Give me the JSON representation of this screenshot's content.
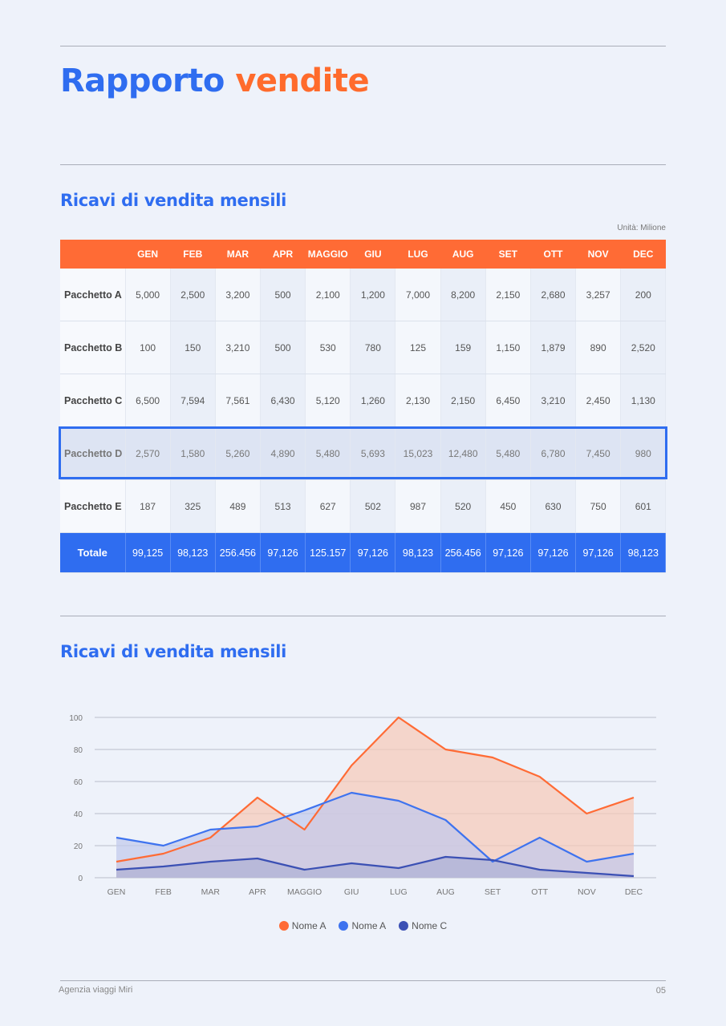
{
  "report": {
    "title_part1": "Rapporto",
    "title_part2": "vendite",
    "table_section_title": "Ricavi di vendita mensili",
    "chart_section_title": "Ricavi di vendita mensili",
    "unit_label": "Unità: Milione"
  },
  "colors": {
    "blue": "#2f6df0",
    "orange": "#ff6b35",
    "navy": "#3b50b4"
  },
  "table": {
    "months": [
      "GEN",
      "FEB",
      "MAR",
      "APR",
      "MAGGIO",
      "GIU",
      "LUG",
      "AUG",
      "SET",
      "OTT",
      "NOV",
      "DEC"
    ],
    "rows": [
      {
        "label": "Pacchetto A",
        "values": [
          "5,000",
          "2,500",
          "3,200",
          "500",
          "2,100",
          "1,200",
          "7,000",
          "8,200",
          "2,150",
          "2,680",
          "3,257",
          "200"
        ]
      },
      {
        "label": "Pacchetto B",
        "values": [
          "100",
          "150",
          "3,210",
          "500",
          "530",
          "780",
          "125",
          "159",
          "1,150",
          "1,879",
          "890",
          "2,520"
        ]
      },
      {
        "label": "Pacchetto C",
        "values": [
          "6,500",
          "7,594",
          "7,561",
          "6,430",
          "5,120",
          "1,260",
          "2,130",
          "2,150",
          "6,450",
          "3,210",
          "2,450",
          "1,130"
        ]
      },
      {
        "label": "Pacchetto D",
        "values": [
          "2,570",
          "1,580",
          "5,260",
          "4,890",
          "5,480",
          "5,693",
          "15,023",
          "12,480",
          "5,480",
          "6,780",
          "7,450",
          "980"
        ],
        "highlighted": true
      },
      {
        "label": "Pacchetto E",
        "values": [
          "187",
          "325",
          "489",
          "513",
          "627",
          "502",
          "987",
          "520",
          "450",
          "630",
          "750",
          "601"
        ]
      }
    ],
    "total": {
      "label": "Totale",
      "values": [
        "99,125",
        "98,123",
        "256.456",
        "97,126",
        "125.157",
        "97,126",
        "98,123",
        "256.456",
        "97,126",
        "97,126",
        "97,126",
        "98,123"
      ]
    }
  },
  "chart_data": {
    "type": "area",
    "categories": [
      "GEN",
      "FEB",
      "MAR",
      "APR",
      "MAGGIO",
      "GIU",
      "LUG",
      "AUG",
      "SET",
      "OTT",
      "NOV",
      "DEC"
    ],
    "ylim": [
      0,
      100
    ],
    "yticks": [
      "0",
      "20",
      "40",
      "60",
      "80",
      "100"
    ],
    "grid": true,
    "legend": "bottom-center",
    "series": [
      {
        "name": "Nome A",
        "color": "#ff6b35",
        "fill": "#f7c9b9",
        "values": [
          10,
          15,
          25,
          50,
          30,
          70,
          100,
          80,
          75,
          63,
          40,
          50
        ]
      },
      {
        "name": "Nome A",
        "color": "#3e73ef",
        "fill": "#c2c9ec",
        "values": [
          25,
          20,
          30,
          32,
          42,
          53,
          48,
          36,
          10,
          25,
          10,
          15
        ]
      },
      {
        "name": "Nome C",
        "color": "#3b50b4",
        "fill": "#aeb1d6",
        "values": [
          5,
          7,
          10,
          12,
          5,
          9,
          6,
          13,
          11,
          5,
          3,
          1
        ]
      }
    ]
  },
  "footer": {
    "left": "Agenzia viaggi Miri",
    "right": "05"
  }
}
